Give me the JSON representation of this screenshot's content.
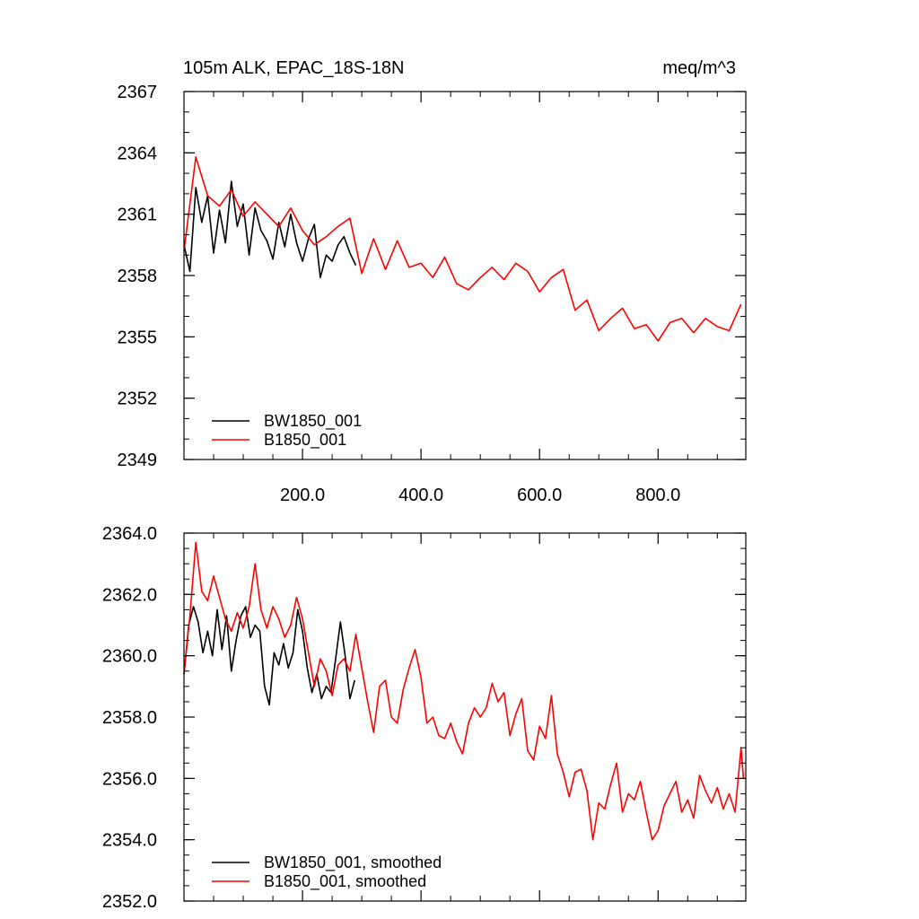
{
  "chart_data": [
    {
      "type": "line",
      "title": "105m ALK, EPAC_18S-18N",
      "units": "meq/m^3",
      "xlim": [
        0,
        948
      ],
      "ylim": [
        2349,
        2367
      ],
      "x_ticks": [
        200,
        400,
        600,
        800
      ],
      "x_tick_labels": [
        "200.0",
        "400.0",
        "600.0",
        "800.0"
      ],
      "y_ticks": [
        2349,
        2352,
        2355,
        2358,
        2361,
        2364,
        2367
      ],
      "y_tick_labels": [
        "2349",
        "2352",
        "2355",
        "2358",
        "2361",
        "2364",
        "2367"
      ],
      "grid": false,
      "legend_position": "bottom-left",
      "series": [
        {
          "name": "BW1850_001",
          "color": "#000000",
          "x": [
            0,
            10,
            20,
            30,
            40,
            50,
            60,
            70,
            80,
            90,
            100,
            110,
            120,
            130,
            140,
            150,
            160,
            170,
            180,
            190,
            200,
            210,
            220,
            230,
            240,
            250,
            260,
            270,
            280,
            290
          ],
          "values": [
            2359.5,
            2358.2,
            2362.3,
            2360.6,
            2361.9,
            2359.1,
            2361.2,
            2359.6,
            2362.6,
            2360.4,
            2361.5,
            2359.0,
            2361.3,
            2360.2,
            2359.7,
            2358.8,
            2360.6,
            2359.4,
            2361.0,
            2359.6,
            2358.7,
            2359.8,
            2360.5,
            2357.9,
            2359.0,
            2358.7,
            2359.5,
            2359.9,
            2359.1,
            2358.5
          ]
        },
        {
          "name": "B1850_001",
          "color": "#ff0000",
          "x": [
            0,
            20,
            40,
            60,
            80,
            100,
            120,
            140,
            160,
            180,
            200,
            220,
            240,
            260,
            280,
            300,
            320,
            340,
            360,
            380,
            400,
            420,
            440,
            460,
            480,
            500,
            520,
            540,
            560,
            580,
            600,
            620,
            640,
            660,
            680,
            700,
            720,
            740,
            760,
            780,
            800,
            820,
            840,
            860,
            880,
            900,
            920,
            940
          ],
          "values": [
            2359.2,
            2363.8,
            2361.9,
            2361.4,
            2362.2,
            2360.9,
            2361.6,
            2361.0,
            2360.4,
            2361.3,
            2360.2,
            2359.5,
            2359.9,
            2360.4,
            2360.8,
            2358.1,
            2359.8,
            2358.3,
            2359.7,
            2358.4,
            2358.6,
            2357.9,
            2358.9,
            2357.6,
            2357.3,
            2357.9,
            2358.4,
            2357.8,
            2358.6,
            2358.2,
            2357.2,
            2357.9,
            2358.3,
            2356.3,
            2356.8,
            2355.3,
            2355.9,
            2356.4,
            2355.4,
            2355.6,
            2354.8,
            2355.7,
            2355.9,
            2355.2,
            2355.9,
            2355.5,
            2355.3,
            2356.6
          ]
        }
      ]
    },
    {
      "type": "line",
      "xlim": [
        0,
        948
      ],
      "ylim": [
        2352,
        2364
      ],
      "y_ticks": [
        2352,
        2354,
        2356,
        2358,
        2360,
        2362,
        2364
      ],
      "y_tick_labels": [
        "2352.0",
        "2354.0",
        "2356.0",
        "2358.0",
        "2360.0",
        "2362.0",
        "2364.0"
      ],
      "grid": false,
      "legend_position": "bottom-left",
      "series": [
        {
          "name": "BW1850_001, smoothed",
          "color": "#000000",
          "x": [
            0,
            8,
            16,
            24,
            32,
            40,
            48,
            56,
            64,
            72,
            80,
            88,
            96,
            104,
            112,
            120,
            128,
            136,
            144,
            152,
            160,
            168,
            176,
            184,
            192,
            200,
            208,
            216,
            224,
            232,
            240,
            248,
            256,
            264,
            272,
            280,
            288
          ],
          "values": [
            2359.4,
            2361.0,
            2361.6,
            2361.1,
            2360.1,
            2360.8,
            2360.0,
            2361.5,
            2360.2,
            2361.3,
            2359.5,
            2360.5,
            2361.3,
            2361.6,
            2360.6,
            2361.0,
            2360.8,
            2359.0,
            2358.4,
            2360.1,
            2359.7,
            2360.4,
            2359.6,
            2360.1,
            2361.5,
            2360.8,
            2359.6,
            2358.8,
            2359.4,
            2358.6,
            2359.0,
            2358.8,
            2359.9,
            2361.1,
            2360.0,
            2358.6,
            2359.2
          ]
        },
        {
          "name": "B1850_001, smoothed",
          "color": "#ff0000",
          "x": [
            0,
            10,
            20,
            30,
            40,
            50,
            60,
            70,
            80,
            90,
            100,
            110,
            120,
            130,
            140,
            150,
            160,
            170,
            180,
            190,
            200,
            210,
            220,
            230,
            240,
            250,
            260,
            270,
            280,
            290,
            300,
            310,
            320,
            330,
            340,
            350,
            360,
            370,
            380,
            390,
            400,
            410,
            420,
            430,
            440,
            450,
            460,
            470,
            480,
            490,
            500,
            510,
            520,
            530,
            540,
            550,
            560,
            570,
            580,
            590,
            600,
            610,
            620,
            630,
            640,
            650,
            660,
            670,
            680,
            690,
            700,
            710,
            720,
            730,
            740,
            750,
            760,
            770,
            780,
            790,
            800,
            810,
            820,
            830,
            840,
            850,
            860,
            870,
            880,
            890,
            900,
            910,
            920,
            930,
            940,
            944
          ],
          "values": [
            2359.4,
            2361.3,
            2363.7,
            2362.1,
            2361.8,
            2362.6,
            2361.9,
            2361.2,
            2360.8,
            2361.4,
            2360.9,
            2361.6,
            2363.0,
            2361.5,
            2360.9,
            2361.6,
            2361.2,
            2360.6,
            2361.0,
            2361.9,
            2361.2,
            2360.1,
            2359.0,
            2359.9,
            2359.5,
            2358.7,
            2359.7,
            2359.9,
            2359.5,
            2360.7,
            2359.6,
            2358.5,
            2357.5,
            2359.0,
            2359.2,
            2358.0,
            2357.8,
            2358.9,
            2359.6,
            2360.2,
            2359.3,
            2357.8,
            2358.0,
            2357.4,
            2357.3,
            2357.8,
            2357.2,
            2356.8,
            2357.8,
            2358.3,
            2358.0,
            2358.3,
            2359.1,
            2358.5,
            2358.8,
            2357.4,
            2358.1,
            2358.6,
            2356.9,
            2356.6,
            2357.7,
            2357.3,
            2358.7,
            2356.8,
            2356.2,
            2355.4,
            2356.2,
            2356.3,
            2355.6,
            2354.0,
            2355.2,
            2355.0,
            2355.8,
            2356.5,
            2354.9,
            2355.5,
            2355.3,
            2355.9,
            2354.9,
            2354.0,
            2354.3,
            2355.1,
            2355.5,
            2355.9,
            2354.9,
            2355.3,
            2354.7,
            2356.1,
            2355.6,
            2355.2,
            2355.7,
            2355.0,
            2355.5,
            2354.9,
            2357.0,
            2356.0
          ]
        }
      ]
    }
  ]
}
